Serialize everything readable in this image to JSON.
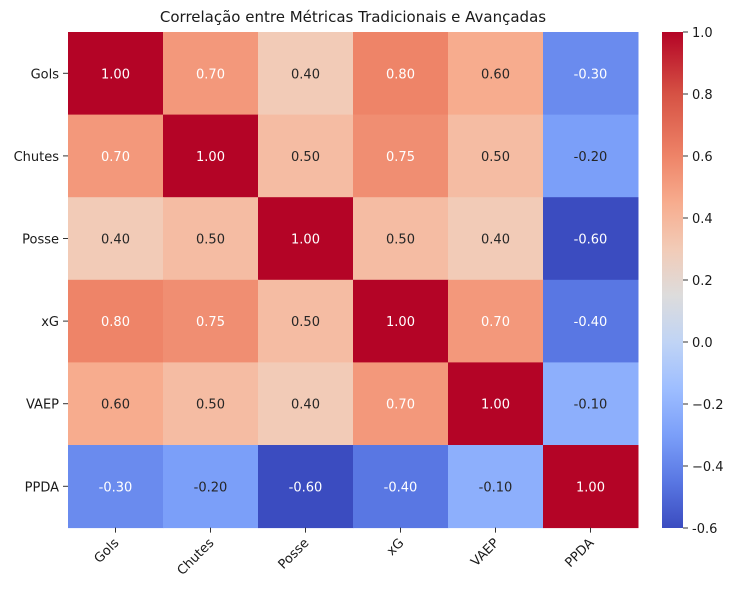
{
  "chart_data": {
    "type": "heatmap",
    "title": "Correlação entre Métricas Tradicionais e Avançadas",
    "xlabel": "",
    "ylabel": "",
    "x_categories": [
      "Gols",
      "Chutes",
      "Posse",
      "xG",
      "VAEP",
      "PPDA"
    ],
    "y_categories": [
      "Gols",
      "Chutes",
      "Posse",
      "xG",
      "VAEP",
      "PPDA"
    ],
    "values": [
      [
        1.0,
        0.7,
        0.4,
        0.8,
        0.6,
        -0.3
      ],
      [
        0.7,
        1.0,
        0.5,
        0.75,
        0.5,
        -0.2
      ],
      [
        0.4,
        0.5,
        1.0,
        0.5,
        0.4,
        -0.6
      ],
      [
        0.8,
        0.75,
        0.5,
        1.0,
        0.7,
        -0.4
      ],
      [
        0.6,
        0.5,
        0.4,
        0.7,
        1.0,
        -0.1
      ],
      [
        -0.3,
        -0.2,
        -0.6,
        -0.4,
        -0.1,
        1.0
      ]
    ],
    "colormap": "coolwarm",
    "value_format": "0.00",
    "color_range": [
      -0.6,
      1.0
    ],
    "colorbar_ticks": [
      "-0.6",
      "−0.4",
      "−0.2",
      "0.0",
      "0.2",
      "0.4",
      "0.6",
      "0.8",
      "1.0"
    ],
    "colorbar_tick_values": [
      -0.6,
      -0.4,
      -0.2,
      0.0,
      0.2,
      0.4,
      0.6,
      0.8,
      1.0
    ],
    "grid": false,
    "legend": "colorbar-right"
  }
}
